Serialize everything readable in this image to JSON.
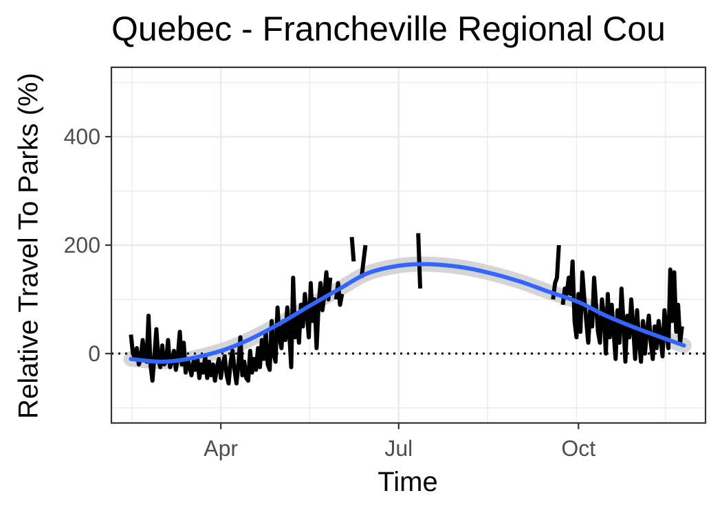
{
  "chart_data": {
    "type": "line",
    "title": "Quebec - Francheville Regional Cou",
    "xlabel": "Time",
    "ylabel": "Relative Travel To Parks (%)",
    "x_ticks": [
      "Apr",
      "Jul",
      "Oct"
    ],
    "y_ticks": [
      0,
      200,
      400
    ],
    "ylim": [
      -128,
      528
    ],
    "xlim": [
      "2020-02-05",
      "2020-12-05"
    ],
    "grid": true,
    "reference_line": {
      "y": 0,
      "style": "dotted"
    },
    "series": [
      {
        "style": "black-thick",
        "segments": [
          [
            [
              "2020-02-15",
              35
            ],
            [
              "2020-02-16",
              0
            ],
            [
              "2020-02-17",
              -8
            ],
            [
              "2020-02-18",
              10
            ],
            [
              "2020-02-19",
              -20
            ],
            [
              "2020-02-20",
              -10
            ],
            [
              "2020-02-21",
              25
            ],
            [
              "2020-02-22",
              -5
            ],
            [
              "2020-02-23",
              -15
            ],
            [
              "2020-02-24",
              70
            ],
            [
              "2020-02-25",
              -20
            ],
            [
              "2020-02-26",
              -50
            ],
            [
              "2020-02-27",
              -5
            ],
            [
              "2020-02-28",
              45
            ],
            [
              "2020-02-29",
              -10
            ],
            [
              "2020-03-01",
              -25
            ],
            [
              "2020-03-02",
              15
            ],
            [
              "2020-03-03",
              -20
            ],
            [
              "2020-03-04",
              -15
            ],
            [
              "2020-03-05",
              25
            ],
            [
              "2020-03-06",
              -25
            ],
            [
              "2020-03-07",
              -15
            ],
            [
              "2020-03-08",
              5
            ],
            [
              "2020-03-09",
              -30
            ],
            [
              "2020-03-10",
              -5
            ],
            [
              "2020-03-11",
              40
            ],
            [
              "2020-03-12",
              -20
            ],
            [
              "2020-03-13",
              20
            ],
            [
              "2020-03-14",
              -35
            ],
            [
              "2020-03-15",
              -10
            ],
            [
              "2020-03-16",
              -25
            ],
            [
              "2020-03-17",
              -40
            ],
            [
              "2020-03-18",
              -15
            ],
            [
              "2020-03-19",
              -30
            ],
            [
              "2020-03-20",
              -10
            ],
            [
              "2020-03-21",
              -45
            ],
            [
              "2020-03-22",
              -20
            ],
            [
              "2020-03-23",
              -35
            ],
            [
              "2020-03-24",
              -5
            ],
            [
              "2020-03-25",
              -45
            ],
            [
              "2020-03-26",
              -15
            ],
            [
              "2020-03-27",
              -40
            ],
            [
              "2020-03-28",
              -20
            ],
            [
              "2020-03-29",
              -50
            ],
            [
              "2020-03-30",
              -25
            ],
            [
              "2020-03-31",
              -10
            ],
            [
              "2020-04-01",
              -45
            ],
            [
              "2020-04-02",
              -20
            ],
            [
              "2020-04-03",
              -5
            ],
            [
              "2020-04-04",
              -40
            ],
            [
              "2020-04-05",
              -55
            ],
            [
              "2020-04-06",
              -15
            ],
            [
              "2020-04-07",
              5
            ],
            [
              "2020-04-08",
              -30
            ],
            [
              "2020-04-09",
              -55
            ],
            [
              "2020-04-10",
              -20
            ],
            [
              "2020-04-11",
              30
            ],
            [
              "2020-04-12",
              -40
            ],
            [
              "2020-04-13",
              -15
            ],
            [
              "2020-04-14",
              -45
            ],
            [
              "2020-04-15",
              -50
            ],
            [
              "2020-04-16",
              5
            ],
            [
              "2020-04-17",
              -35
            ],
            [
              "2020-04-18",
              -10
            ],
            [
              "2020-04-19",
              -30
            ],
            [
              "2020-04-20",
              10
            ],
            [
              "2020-04-21",
              -25
            ],
            [
              "2020-04-22",
              25
            ],
            [
              "2020-04-23",
              -10
            ],
            [
              "2020-04-24",
              40
            ],
            [
              "2020-04-25",
              -20
            ],
            [
              "2020-04-26",
              -30
            ],
            [
              "2020-04-27",
              60
            ],
            [
              "2020-04-28",
              0
            ],
            [
              "2020-04-29",
              -15
            ],
            [
              "2020-04-30",
              85
            ],
            [
              "2020-05-01",
              30
            ],
            [
              "2020-05-02",
              10
            ],
            [
              "2020-05-03",
              60
            ],
            [
              "2020-05-04",
              25
            ],
            [
              "2020-05-05",
              85
            ],
            [
              "2020-05-06",
              40
            ],
            [
              "2020-05-07",
              -25
            ],
            [
              "2020-05-08",
              140
            ],
            [
              "2020-05-09",
              30
            ],
            [
              "2020-05-10",
              70
            ],
            [
              "2020-05-11",
              20
            ],
            [
              "2020-05-12",
              90
            ],
            [
              "2020-05-13",
              50
            ],
            [
              "2020-05-14",
              110
            ],
            [
              "2020-05-15",
              75
            ],
            [
              "2020-05-16",
              30
            ],
            [
              "2020-05-17",
              130
            ],
            [
              "2020-05-18",
              60
            ],
            [
              "2020-05-19",
              100
            ],
            [
              "2020-05-20",
              10
            ],
            [
              "2020-05-21",
              90
            ],
            [
              "2020-05-22",
              130
            ],
            [
              "2020-05-23",
              80
            ],
            [
              "2020-05-24",
              110
            ],
            [
              "2020-05-25",
              150
            ],
            [
              "2020-05-26",
              100
            ],
            [
              "2020-05-27",
              140
            ]
          ],
          [
            [
              "2020-05-30",
              100
            ],
            [
              "2020-05-31",
              130
            ],
            [
              "2020-06-01",
              90
            ],
            [
              "2020-06-02",
              110
            ]
          ],
          [
            [
              "2020-06-07",
              215
            ],
            [
              "2020-06-08",
              170
            ]
          ],
          [
            [
              "2020-06-12",
              140
            ],
            [
              "2020-06-13",
              170
            ],
            [
              "2020-06-14",
              200
            ]
          ],
          [
            [
              "2020-07-11",
              222
            ],
            [
              "2020-07-12",
              120
            ]
          ],
          [
            [
              "2020-09-18",
              100
            ],
            [
              "2020-09-19",
              130
            ],
            [
              "2020-09-20",
              140
            ],
            [
              "2020-09-21",
              200
            ]
          ],
          [
            [
              "2020-09-23",
              90
            ],
            [
              "2020-09-24",
              120
            ],
            [
              "2020-09-25",
              110
            ],
            [
              "2020-09-26",
              140
            ],
            [
              "2020-09-27",
              110
            ],
            [
              "2020-09-28",
              170
            ],
            [
              "2020-09-29",
              60
            ],
            [
              "2020-09-30",
              30
            ],
            [
              "2020-10-01",
              110
            ],
            [
              "2020-10-02",
              40
            ],
            [
              "2020-10-03",
              150
            ],
            [
              "2020-10-04",
              100
            ],
            [
              "2020-10-05",
              60
            ],
            [
              "2020-10-06",
              20
            ],
            [
              "2020-10-07",
              80
            ],
            [
              "2020-10-08",
              50
            ],
            [
              "2020-10-09",
              140
            ],
            [
              "2020-10-10",
              90
            ],
            [
              "2020-10-11",
              40
            ],
            [
              "2020-10-12",
              20
            ],
            [
              "2020-10-13",
              100
            ],
            [
              "2020-10-14",
              70
            ],
            [
              "2020-10-15",
              0
            ],
            [
              "2020-10-16",
              110
            ],
            [
              "2020-10-17",
              30
            ],
            [
              "2020-10-18",
              90
            ],
            [
              "2020-10-19",
              40
            ],
            [
              "2020-10-20",
              -10
            ],
            [
              "2020-10-21",
              80
            ],
            [
              "2020-10-22",
              20
            ],
            [
              "2020-10-23",
              120
            ],
            [
              "2020-10-24",
              60
            ],
            [
              "2020-10-25",
              -15
            ],
            [
              "2020-10-26",
              70
            ],
            [
              "2020-10-27",
              30
            ],
            [
              "2020-10-28",
              100
            ],
            [
              "2020-10-29",
              50
            ],
            [
              "2020-10-30",
              -10
            ],
            [
              "2020-10-31",
              80
            ],
            [
              "2020-11-01",
              20
            ],
            [
              "2020-11-02",
              -15
            ],
            [
              "2020-11-03",
              60
            ],
            [
              "2020-11-04",
              0
            ],
            [
              "2020-11-05",
              40
            ],
            [
              "2020-11-06",
              70
            ],
            [
              "2020-11-07",
              20
            ],
            [
              "2020-11-08",
              -10
            ],
            [
              "2020-11-09",
              50
            ],
            [
              "2020-11-10",
              10
            ],
            [
              "2020-11-11",
              60
            ],
            [
              "2020-11-12",
              30
            ],
            [
              "2020-11-13",
              -5
            ],
            [
              "2020-11-14",
              80
            ],
            [
              "2020-11-15",
              40
            ],
            [
              "2020-11-16",
              10
            ],
            [
              "2020-11-17",
              155
            ],
            [
              "2020-11-18",
              60
            ],
            [
              "2020-11-19",
              150
            ],
            [
              "2020-11-20",
              40
            ],
            [
              "2020-11-21",
              90
            ],
            [
              "2020-11-22",
              20
            ],
            [
              "2020-11-23",
              50
            ]
          ]
        ]
      },
      {
        "style": "blue-smooth",
        "points": [
          [
            "2020-02-15",
            -10
          ],
          [
            "2020-03-01",
            -15
          ],
          [
            "2020-03-15",
            -10
          ],
          [
            "2020-04-01",
            5
          ],
          [
            "2020-04-15",
            25
          ],
          [
            "2020-05-01",
            55
          ],
          [
            "2020-05-15",
            85
          ],
          [
            "2020-06-01",
            120
          ],
          [
            "2020-06-15",
            148
          ],
          [
            "2020-07-01",
            162
          ],
          [
            "2020-07-15",
            165
          ],
          [
            "2020-08-01",
            160
          ],
          [
            "2020-08-15",
            150
          ],
          [
            "2020-09-01",
            133
          ],
          [
            "2020-09-15",
            115
          ],
          [
            "2020-10-01",
            95
          ],
          [
            "2020-10-15",
            70
          ],
          [
            "2020-11-01",
            45
          ],
          [
            "2020-11-24",
            15
          ]
        ]
      }
    ]
  }
}
